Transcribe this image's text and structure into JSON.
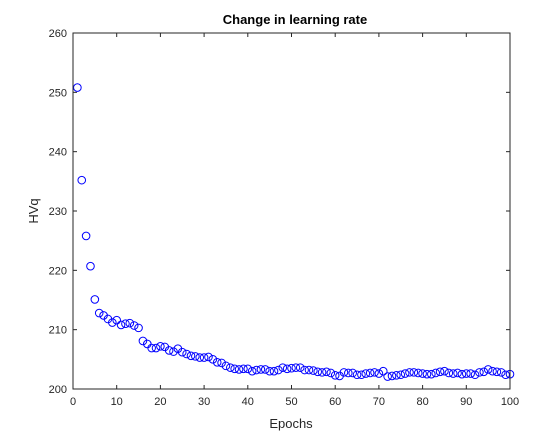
{
  "chart_data": {
    "type": "scatter",
    "title": "Change in learning rate",
    "xlabel": "Epochs",
    "ylabel": "HVq",
    "xlim": [
      0,
      100
    ],
    "ylim": [
      200,
      260
    ],
    "xticks": [
      "0",
      "10",
      "20",
      "30",
      "40",
      "50",
      "60",
      "70",
      "80",
      "90",
      "100"
    ],
    "yticks": [
      "200",
      "210",
      "220",
      "230",
      "240",
      "250",
      "260"
    ],
    "grid": false,
    "marker": "open-circle",
    "marker_color": "#0000ff",
    "x": [
      1,
      2,
      3,
      4,
      5,
      6,
      7,
      8,
      9,
      10,
      11,
      12,
      13,
      14,
      15,
      16,
      17,
      18,
      19,
      20,
      21,
      22,
      23,
      24,
      25,
      26,
      27,
      28,
      29,
      30,
      31,
      32,
      33,
      34,
      35,
      36,
      37,
      38,
      39,
      40,
      41,
      42,
      43,
      44,
      45,
      46,
      47,
      48,
      49,
      50,
      51,
      52,
      53,
      54,
      55,
      56,
      57,
      58,
      59,
      60,
      61,
      62,
      63,
      64,
      65,
      66,
      67,
      68,
      69,
      70,
      71,
      72,
      73,
      74,
      75,
      76,
      77,
      78,
      79,
      80,
      81,
      82,
      83,
      84,
      85,
      86,
      87,
      88,
      89,
      90,
      91,
      92,
      93,
      94,
      95,
      96,
      97,
      98,
      99,
      100
    ],
    "y": [
      250.8,
      235.2,
      225.8,
      220.7,
      215.1,
      212.8,
      212.4,
      211.8,
      211.2,
      211.6,
      210.8,
      211.0,
      211.1,
      210.7,
      210.3,
      208.1,
      207.6,
      206.9,
      206.9,
      207.2,
      207.1,
      206.5,
      206.3,
      206.8,
      206.2,
      205.9,
      205.6,
      205.5,
      205.3,
      205.3,
      205.4,
      205.0,
      204.5,
      204.4,
      203.9,
      203.6,
      203.4,
      203.3,
      203.4,
      203.4,
      203.0,
      203.2,
      203.3,
      203.3,
      203.0,
      203.0,
      203.2,
      203.6,
      203.4,
      203.5,
      203.6,
      203.6,
      203.2,
      203.2,
      203.1,
      202.9,
      202.8,
      202.9,
      202.7,
      202.3,
      202.2,
      202.8,
      202.7,
      202.7,
      202.4,
      202.4,
      202.6,
      202.7,
      202.8,
      202.6,
      203.0,
      202.1,
      202.2,
      202.3,
      202.4,
      202.6,
      202.8,
      202.8,
      202.7,
      202.6,
      202.5,
      202.5,
      202.7,
      202.9,
      203.0,
      202.7,
      202.6,
      202.7,
      202.5,
      202.6,
      202.6,
      202.4,
      202.8,
      202.9,
      203.3,
      203.0,
      202.9,
      202.8,
      202.4,
      202.5
    ]
  }
}
